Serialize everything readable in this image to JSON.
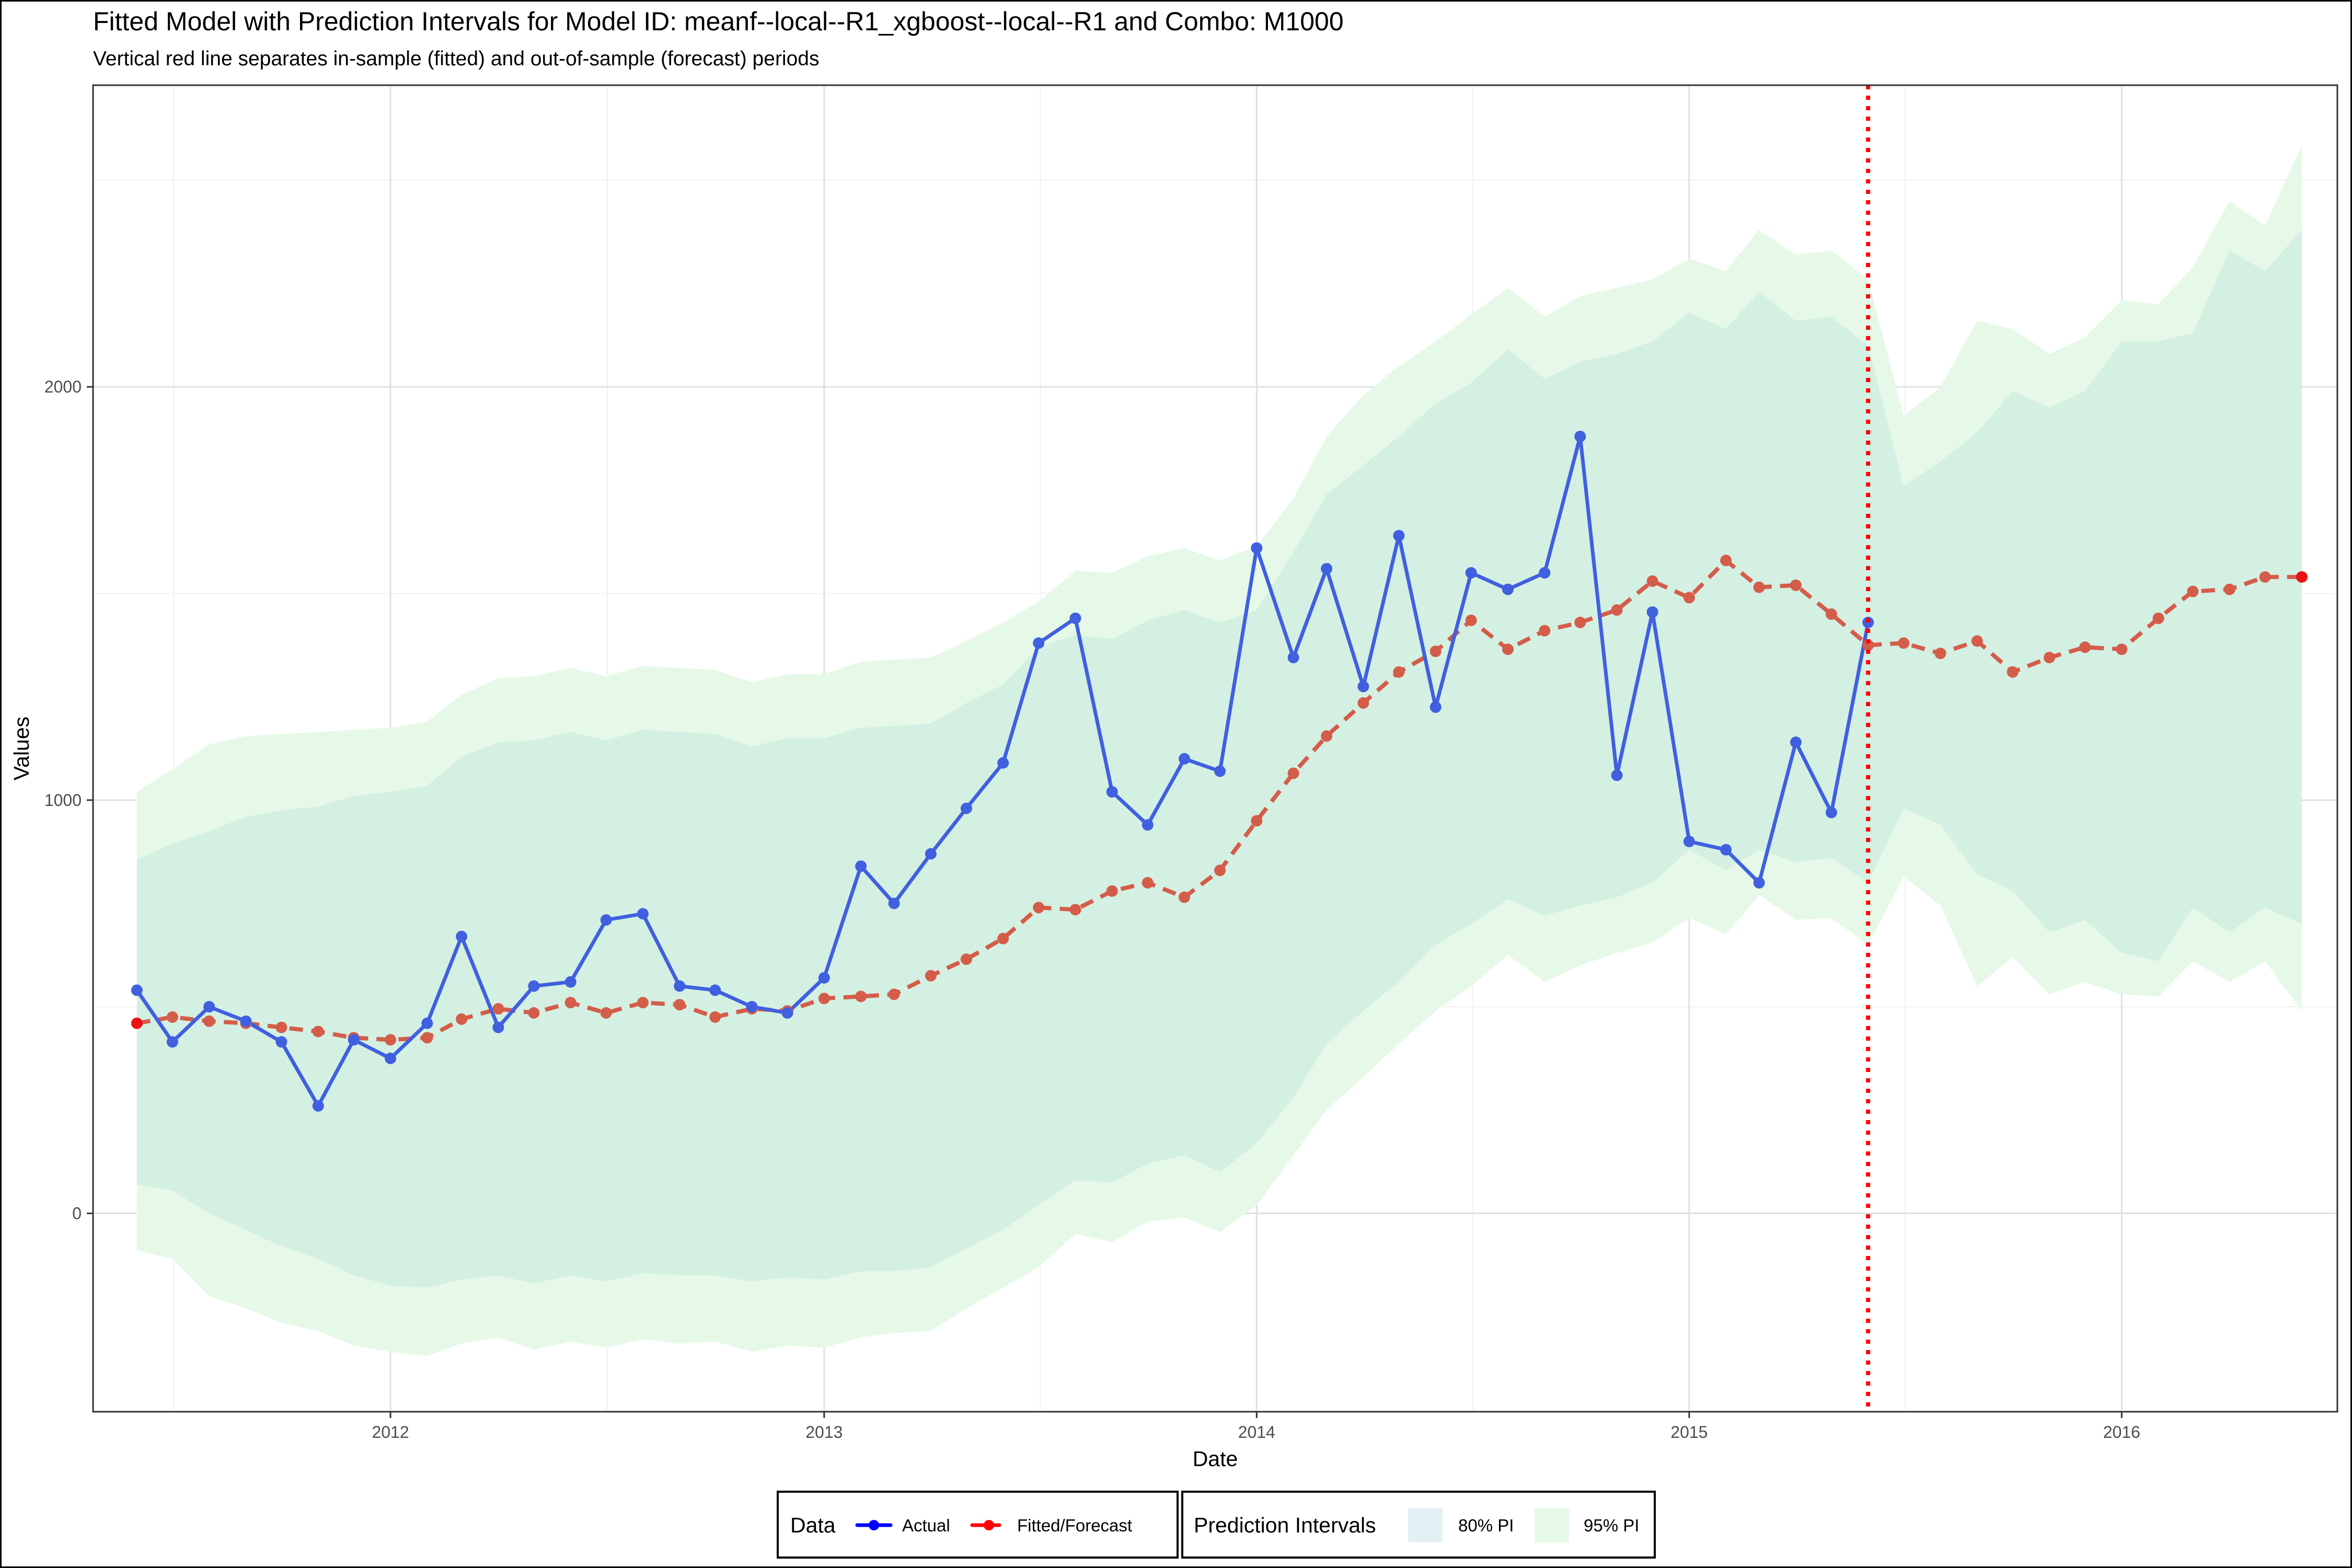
{
  "chart_data": {
    "type": "line",
    "title": "Fitted Model with Prediction Intervals for Model ID: meanf--local--R1_xgboost--local--R1 and Combo: M1000",
    "subtitle": "Vertical red line separates in-sample (fitted) and out-of-sample (forecast) periods",
    "xlabel": "Date",
    "ylabel": "Values",
    "xlim": [
      "2011-04-25",
      "2016-07-01"
    ],
    "ylim": [
      -480,
      2730
    ],
    "x_ticks": [
      "2012-01-01",
      "2013-01-01",
      "2014-01-01",
      "2015-01-01",
      "2016-01-01"
    ],
    "x_tick_labels": [
      "2012",
      "2013",
      "2014",
      "2015",
      "2016"
    ],
    "y_ticks": [
      0,
      1000,
      2000
    ],
    "y_tick_labels": [
      "0",
      "1000",
      "2000"
    ],
    "grid": true,
    "split_date": "2015-06-01",
    "dates": [
      "2011-06-01",
      "2011-07-01",
      "2011-08-01",
      "2011-09-01",
      "2011-10-01",
      "2011-11-01",
      "2011-12-01",
      "2012-01-01",
      "2012-02-01",
      "2012-03-01",
      "2012-04-01",
      "2012-05-01",
      "2012-06-01",
      "2012-07-01",
      "2012-08-01",
      "2012-09-01",
      "2012-10-01",
      "2012-11-01",
      "2012-12-01",
      "2013-01-01",
      "2013-02-01",
      "2013-03-01",
      "2013-04-01",
      "2013-05-01",
      "2013-06-01",
      "2013-07-01",
      "2013-08-01",
      "2013-09-01",
      "2013-10-01",
      "2013-11-01",
      "2013-12-01",
      "2014-01-01",
      "2014-02-01",
      "2014-03-01",
      "2014-04-01",
      "2014-05-01",
      "2014-06-01",
      "2014-07-01",
      "2014-08-01",
      "2014-09-01",
      "2014-10-01",
      "2014-11-01",
      "2014-12-01",
      "2015-01-01",
      "2015-02-01",
      "2015-03-01",
      "2015-04-01",
      "2015-05-01",
      "2015-06-01",
      "2015-07-01",
      "2015-08-01",
      "2015-09-01",
      "2015-10-01",
      "2015-11-01",
      "2015-12-01",
      "2016-01-01",
      "2016-02-01",
      "2016-03-01",
      "2016-04-01",
      "2016-05-01",
      "2016-06-01"
    ],
    "series": [
      {
        "name": "Actual",
        "color": "#4060e0",
        "values": [
          540,
          415,
          500,
          465,
          415,
          260,
          420,
          375,
          460,
          670,
          450,
          550,
          560,
          710,
          725,
          550,
          540,
          500,
          485,
          570,
          840,
          750,
          870,
          980,
          1090,
          1380,
          1440,
          1020,
          940,
          1100,
          1070,
          1610,
          1345,
          1560,
          1275,
          1640,
          1225,
          1550,
          1510,
          1550,
          1880,
          1060,
          1455,
          900,
          880,
          800,
          1140,
          970,
          1430,
          null,
          null,
          null,
          null,
          null,
          null,
          null,
          null,
          null,
          null,
          null,
          null
        ]
      },
      {
        "name": "Fitted/Forecast",
        "color": "#d45d4a",
        "values": [
          460,
          475,
          465,
          460,
          450,
          440,
          425,
          420,
          425,
          470,
          495,
          485,
          510,
          485,
          510,
          505,
          475,
          495,
          490,
          520,
          525,
          530,
          575,
          615,
          665,
          740,
          735,
          780,
          800,
          765,
          830,
          950,
          1065,
          1155,
          1235,
          1310,
          1360,
          1435,
          1365,
          1410,
          1430,
          1460,
          1530,
          1490,
          1580,
          1515,
          1520,
          1450,
          1375,
          1380,
          1355,
          1385,
          1310,
          1345,
          1370,
          1365,
          1440,
          1505,
          1510,
          1540,
          1540
        ]
      }
    ],
    "intervals": [
      {
        "name": "80% PI",
        "color": "#d4f0e2",
        "lower": [
          70,
          55,
          0,
          -40,
          -80,
          -110,
          -150,
          -175,
          -180,
          -160,
          -150,
          -170,
          -150,
          -165,
          -145,
          -150,
          -150,
          -165,
          -155,
          -160,
          -140,
          -140,
          -130,
          -85,
          -40,
          20,
          80,
          75,
          120,
          140,
          100,
          170,
          280,
          410,
          490,
          560,
          650,
          700,
          760,
          720,
          745,
          765,
          800,
          880,
          830,
          880,
          850,
          860,
          800,
          980,
          940,
          820,
          780,
          680,
          710,
          630,
          610,
          740,
          680,
          740,
          700
        ],
        "upper": [
          855,
          895,
          925,
          960,
          975,
          985,
          1010,
          1020,
          1035,
          1105,
          1140,
          1145,
          1165,
          1145,
          1170,
          1165,
          1160,
          1130,
          1150,
          1150,
          1175,
          1180,
          1185,
          1235,
          1280,
          1370,
          1400,
          1390,
          1435,
          1460,
          1430,
          1460,
          1600,
          1740,
          1810,
          1880,
          1960,
          2010,
          2090,
          2020,
          2060,
          2080,
          2110,
          2180,
          2140,
          2230,
          2160,
          2170,
          2100,
          1760,
          1820,
          1890,
          1990,
          1950,
          1990,
          2110,
          2110,
          2130,
          2330,
          2280,
          2380
        ]
      },
      {
        "name": "95% PI",
        "color": "#e6f9e8",
        "lower": [
          -90,
          -110,
          -200,
          -230,
          -265,
          -285,
          -320,
          -335,
          -345,
          -315,
          -300,
          -330,
          -310,
          -325,
          -305,
          -315,
          -310,
          -335,
          -320,
          -325,
          -300,
          -290,
          -285,
          -230,
          -180,
          -130,
          -50,
          -70,
          -20,
          -10,
          -45,
          20,
          140,
          250,
          330,
          410,
          490,
          550,
          625,
          560,
          600,
          630,
          655,
          715,
          675,
          770,
          710,
          715,
          650,
          815,
          745,
          550,
          620,
          530,
          560,
          530,
          525,
          610,
          560,
          610,
          490
        ],
        "upper": [
          1020,
          1075,
          1135,
          1155,
          1160,
          1165,
          1170,
          1175,
          1190,
          1255,
          1295,
          1300,
          1320,
          1300,
          1325,
          1320,
          1315,
          1285,
          1305,
          1305,
          1335,
          1340,
          1345,
          1385,
          1430,
          1480,
          1555,
          1550,
          1590,
          1610,
          1580,
          1615,
          1730,
          1880,
          1980,
          2050,
          2110,
          2175,
          2240,
          2170,
          2220,
          2240,
          2260,
          2310,
          2280,
          2380,
          2320,
          2330,
          2260,
          1930,
          2000,
          2160,
          2140,
          2080,
          2120,
          2210,
          2200,
          2290,
          2450,
          2390,
          2585
        ]
      }
    ],
    "legend": {
      "placement": "bottom",
      "data_title": "Data",
      "data_items": [
        "Actual",
        "Fitted/Forecast"
      ],
      "data_colors": [
        "#0000ff",
        "#ff0000"
      ],
      "pi_title": "Prediction Intervals",
      "pi_items": [
        "80% PI",
        "95% PI"
      ],
      "pi_colors": [
        "#e3f0f4",
        "#e6f9e8"
      ]
    }
  }
}
